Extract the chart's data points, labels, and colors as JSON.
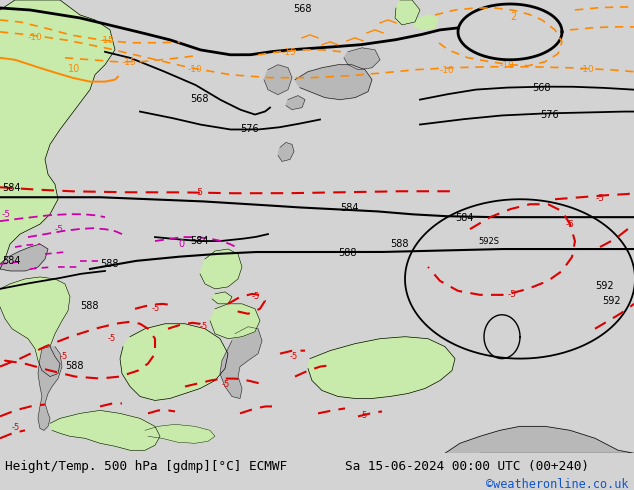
{
  "title_left": "Height/Temp. 500 hPa [gdmp][°C] ECMWF",
  "title_right": "Sa 15-06-2024 00:00 UTC (00+240)",
  "credit": "©weatheronline.co.uk",
  "bg_color": "#d3d3d3",
  "ocean_color": "#d3d3d3",
  "land_green_color": "#c8eaaa",
  "land_gray_color": "#b8b8b8",
  "black": "#000000",
  "red": "#dd0000",
  "orange": "#ff8800",
  "magenta": "#cc00aa",
  "fig_width": 6.34,
  "fig_height": 4.9,
  "dpi": 100
}
